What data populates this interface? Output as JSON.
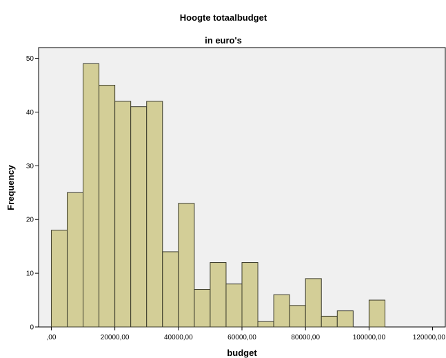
{
  "chart_data": {
    "type": "bar",
    "title": "Hoogte totaalbudget",
    "subtitle": "in euro's",
    "xlabel": "budget",
    "ylabel": "Frequency",
    "bin_width": 5000,
    "bins": [
      {
        "start": 0,
        "value": 18
      },
      {
        "start": 5000,
        "value": 25
      },
      {
        "start": 10000,
        "value": 49
      },
      {
        "start": 15000,
        "value": 45
      },
      {
        "start": 20000,
        "value": 42
      },
      {
        "start": 25000,
        "value": 41
      },
      {
        "start": 30000,
        "value": 42
      },
      {
        "start": 35000,
        "value": 14
      },
      {
        "start": 40000,
        "value": 23
      },
      {
        "start": 45000,
        "value": 7
      },
      {
        "start": 50000,
        "value": 12
      },
      {
        "start": 55000,
        "value": 8
      },
      {
        "start": 60000,
        "value": 12
      },
      {
        "start": 65000,
        "value": 1
      },
      {
        "start": 70000,
        "value": 6
      },
      {
        "start": 75000,
        "value": 4
      },
      {
        "start": 80000,
        "value": 9
      },
      {
        "start": 85000,
        "value": 2
      },
      {
        "start": 90000,
        "value": 3
      },
      {
        "start": 95000,
        "value": 0
      },
      {
        "start": 100000,
        "value": 5
      }
    ],
    "xlim": [
      -4000,
      124000
    ],
    "ylim": [
      0,
      52
    ],
    "x_ticks": [
      {
        "value": 0,
        "label": ",00"
      },
      {
        "value": 20000,
        "label": "20000,00"
      },
      {
        "value": 40000,
        "label": "40000,00"
      },
      {
        "value": 60000,
        "label": "60000,00"
      },
      {
        "value": 80000,
        "label": "80000,00"
      },
      {
        "value": 100000,
        "label": "100000,00"
      },
      {
        "value": 120000,
        "label": "120000,00"
      }
    ],
    "y_ticks": [
      {
        "value": 0,
        "label": "0"
      },
      {
        "value": 10,
        "label": "10"
      },
      {
        "value": 20,
        "label": "20"
      },
      {
        "value": 30,
        "label": "30"
      },
      {
        "value": 40,
        "label": "40"
      },
      {
        "value": 50,
        "label": "50"
      }
    ],
    "grid": false,
    "colors": {
      "plot_background": "#f0f0f0",
      "bar_fill": "#d3ce97",
      "bar_stroke": "#3a3a2a",
      "frame": "#000000"
    }
  }
}
